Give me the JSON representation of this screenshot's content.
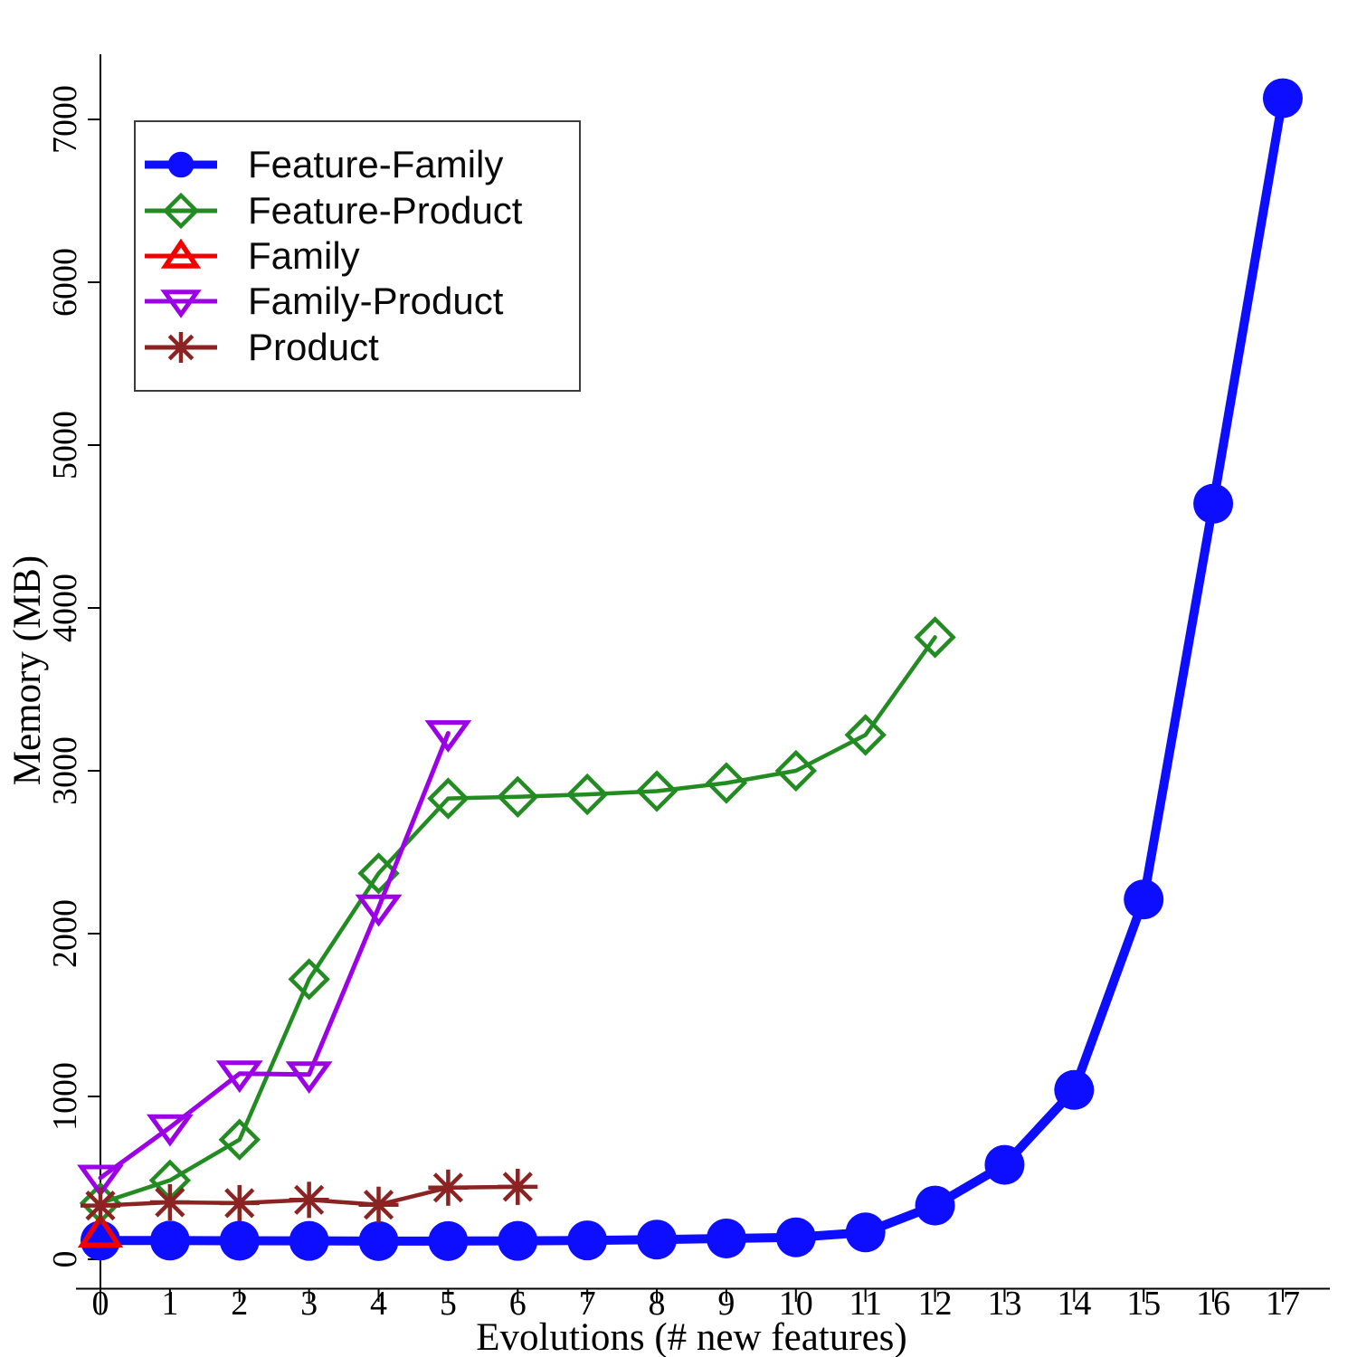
{
  "chart_data": {
    "type": "line",
    "title": "",
    "xlabel": "Evolutions (# new features)",
    "ylabel": "Memory (MB)",
    "xlim": [
      0,
      17.7
    ],
    "ylim": [
      0,
      7400
    ],
    "x_ticks": [
      0,
      1,
      2,
      3,
      4,
      5,
      6,
      7,
      8,
      9,
      10,
      11,
      12,
      13,
      14,
      15,
      16,
      17
    ],
    "y_ticks": [
      0,
      1000,
      2000,
      3000,
      4000,
      5000,
      6000,
      7000
    ],
    "grid": false,
    "legend_position": "upper-left",
    "axis_color": "#000000",
    "series": [
      {
        "name": "Feature-Family",
        "color": "#0d0dff",
        "marker": "circle",
        "line_width": 10,
        "x": [
          0,
          1,
          2,
          3,
          4,
          5,
          6,
          7,
          8,
          9,
          10,
          11,
          12,
          13,
          14,
          15,
          16,
          17
        ],
        "values": [
          115,
          115,
          114,
          113,
          112,
          112,
          113,
          116,
          121,
          128,
          135,
          165,
          330,
          580,
          1040,
          2210,
          4640,
          7130
        ]
      },
      {
        "name": "Feature-Product",
        "color": "#228b22",
        "marker": "diamond",
        "line_width": 4.5,
        "x": [
          0,
          1,
          2,
          3,
          4,
          5,
          6,
          7,
          8,
          9,
          10,
          11,
          12
        ],
        "values": [
          345,
          485,
          735,
          1720,
          2370,
          2830,
          2840,
          2855,
          2875,
          2925,
          3000,
          3220,
          3820
        ]
      },
      {
        "name": "Family",
        "color": "#f20000",
        "marker": "triangle-up",
        "line_width": 5,
        "x": [
          0
        ],
        "values": [
          160
        ]
      },
      {
        "name": "Family-Product",
        "color": "#9b00e6",
        "marker": "triangle-down",
        "line_width": 5,
        "x": [
          0,
          1,
          2,
          3,
          4,
          5
        ],
        "values": [
          500,
          810,
          1140,
          1135,
          2160,
          3230
        ]
      },
      {
        "name": "Product",
        "color": "#8c2323",
        "marker": "asterisk",
        "line_width": 4.5,
        "x": [
          0,
          1,
          2,
          3,
          4,
          5,
          6
        ],
        "values": [
          330,
          350,
          345,
          365,
          335,
          440,
          445
        ]
      }
    ]
  }
}
